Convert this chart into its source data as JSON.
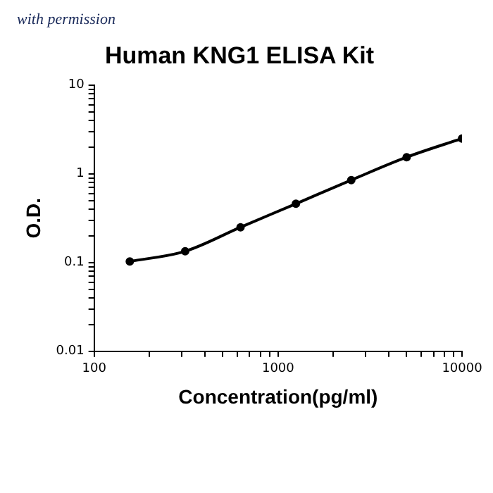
{
  "chart_data": {
    "type": "line",
    "title": "Human KNG1 ELISA Kit",
    "xlabel": "Concentration(pg/ml)",
    "ylabel": "O.D.",
    "annotations": [
      "with permission"
    ],
    "x": [
      156.25,
      312.5,
      625,
      1250,
      2500,
      5000,
      10000
    ],
    "series": [
      {
        "color": "#000000",
        "values": [
          0.103,
          0.134,
          0.25,
          0.46,
          0.85,
          1.54,
          2.5
        ]
      }
    ],
    "log": "xy",
    "grid": false,
    "legend": false,
    "marker": "circle",
    "line_style": "solid",
    "xlim": [
      100,
      10000
    ],
    "ylim": [
      0.01,
      10
    ],
    "xticks": [
      100,
      {
        "value": 200,
        "label": null
      },
      {
        "value": 300,
        "label": null
      },
      {
        "value": 400,
        "label": null
      },
      {
        "value": 500,
        "label": null
      },
      {
        "value": 600,
        "label": null
      },
      {
        "value": 700,
        "label": null
      },
      {
        "value": 800,
        "label": null
      },
      {
        "value": 900,
        "label": null
      },
      1000,
      {
        "value": 2000,
        "label": null
      },
      {
        "value": 3000,
        "label": null
      },
      {
        "value": 4000,
        "label": null
      },
      {
        "value": 5000,
        "label": null
      },
      {
        "value": 6000,
        "label": null
      },
      {
        "value": 7000,
        "label": null
      },
      {
        "value": 8000,
        "label": null
      },
      {
        "value": 9000,
        "label": null
      },
      10000
    ],
    "yticks": [
      0.01,
      {
        "value": 0.02,
        "label": null
      },
      {
        "value": 0.03,
        "label": null
      },
      {
        "value": 0.04,
        "label": null
      },
      {
        "value": 0.05,
        "label": null
      },
      {
        "value": 0.06,
        "label": null
      },
      {
        "value": 0.07,
        "label": null
      },
      {
        "value": 0.08,
        "label": null
      },
      {
        "value": 0.09,
        "label": null
      },
      0.1,
      {
        "value": 0.2,
        "label": null
      },
      {
        "value": 0.3,
        "label": null
      },
      {
        "value": 0.4,
        "label": null
      },
      {
        "value": 0.5,
        "label": null
      },
      {
        "value": 0.6,
        "label": null
      },
      {
        "value": 0.7,
        "label": null
      },
      {
        "value": 0.8,
        "label": null
      },
      {
        "value": 0.9,
        "label": null
      },
      1,
      {
        "value": 2,
        "label": null
      },
      {
        "value": 3,
        "label": null
      },
      {
        "value": 4,
        "label": null
      },
      {
        "value": 5,
        "label": null
      },
      {
        "value": 6,
        "label": null
      },
      {
        "value": 7,
        "label": null
      },
      {
        "value": 8,
        "label": null
      },
      {
        "value": 9,
        "label": null
      },
      10
    ]
  }
}
